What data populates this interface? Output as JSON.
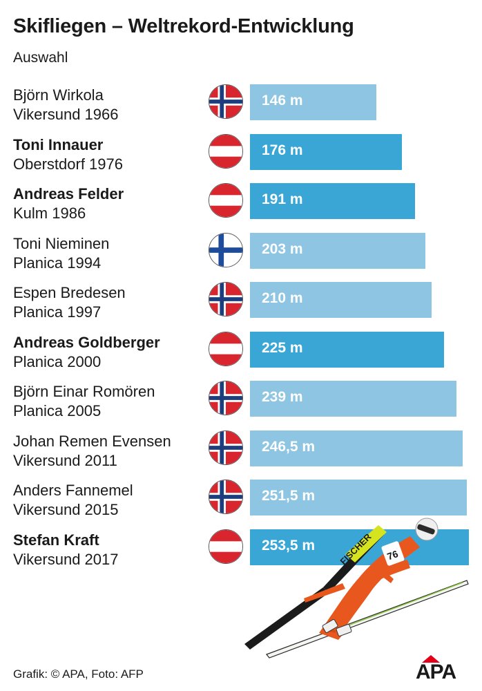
{
  "chart_data": {
    "type": "bar",
    "orientation": "horizontal",
    "title": "Skifliegen – Weltrekord-Entwicklung",
    "subtitle": "Auswahl",
    "unit": "m",
    "xlim": [
      0,
      253.5
    ],
    "colors": {
      "austria": "#3aa6d6",
      "other": "#8dc5e2",
      "label": "#ffffff"
    },
    "rows": [
      {
        "name": "Björn Wirkola",
        "place": "Vikersund 1966",
        "country": "norway",
        "value": 146,
        "label": "146 m",
        "bold": false
      },
      {
        "name": "Toni Innauer",
        "place": "Oberstdorf 1976",
        "country": "austria",
        "value": 176,
        "label": "176 m",
        "bold": true
      },
      {
        "name": "Andreas Felder",
        "place": "Kulm 1986",
        "country": "austria",
        "value": 191,
        "label": "191 m",
        "bold": true
      },
      {
        "name": "Toni Nieminen",
        "place": "Planica 1994",
        "country": "finland",
        "value": 203,
        "label": "203 m",
        "bold": false
      },
      {
        "name": "Espen Bredesen",
        "place": "Planica 1997",
        "country": "norway",
        "value": 210,
        "label": "210 m",
        "bold": false
      },
      {
        "name": "Andreas Goldberger",
        "place": "Planica 2000",
        "country": "austria",
        "value": 225,
        "label": "225 m",
        "bold": true
      },
      {
        "name": "Björn Einar Romören",
        "place": "Planica 2005",
        "country": "norway",
        "value": 239,
        "label": "239 m",
        "bold": false
      },
      {
        "name": "Johan Remen Evensen",
        "place": "Vikersund 2011",
        "country": "norway",
        "value": 246.5,
        "label": "246,5 m",
        "bold": false
      },
      {
        "name": "Anders Fannemel",
        "place": "Vikersund 2015",
        "country": "norway",
        "value": 251.5,
        "label": "251,5 m",
        "bold": false
      },
      {
        "name": "Stefan Kraft",
        "place": "Vikersund 2017",
        "country": "austria",
        "value": 253.5,
        "label": "253,5 m",
        "bold": true
      }
    ]
  },
  "footer": "Grafik: © APA, Foto: AFP",
  "logo": "APA",
  "photo": {
    "ski_brand": "FISCHER",
    "bib": "76"
  }
}
